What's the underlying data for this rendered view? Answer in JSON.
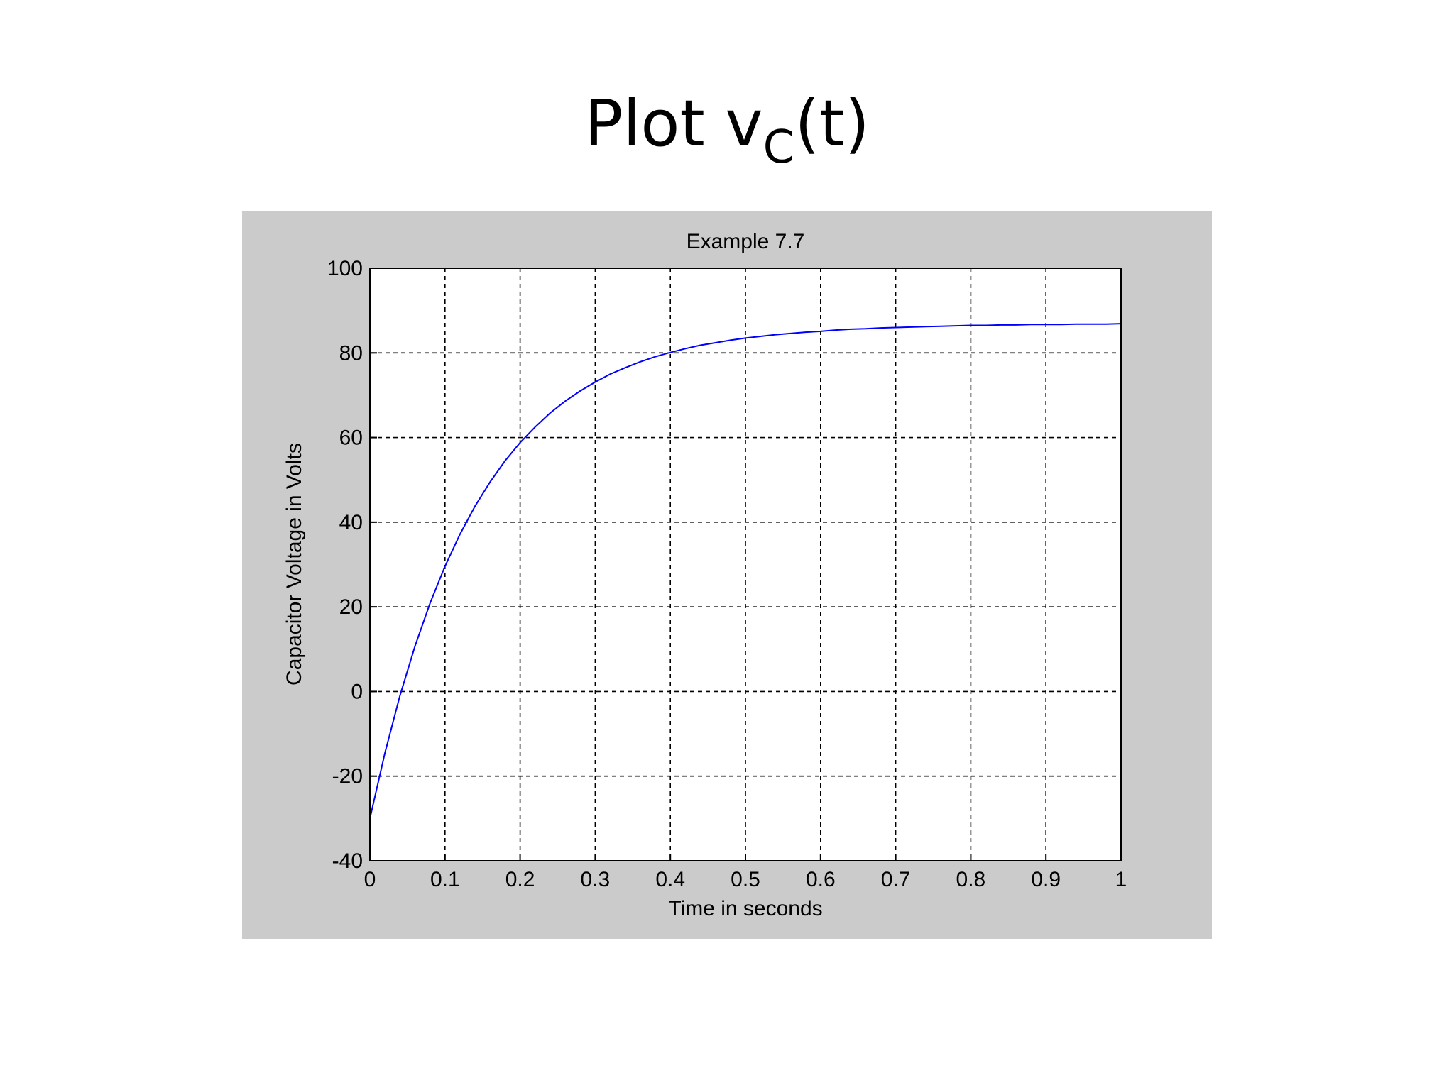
{
  "slide": {
    "title_main": "Plot v",
    "title_sub": "C",
    "title_tail": "(t)"
  },
  "colors": {
    "figure_background": "#cbcbcb",
    "axes_background": "#ffffff",
    "line": "#0000ff",
    "grid": "#000000"
  },
  "chart_data": {
    "type": "line",
    "title": "Example 7.7",
    "xlabel": "Time in seconds",
    "ylabel": "Capacitor Voltage in Volts",
    "xlim": [
      0,
      1
    ],
    "ylim": [
      -40,
      100
    ],
    "xticks": [
      0,
      0.1,
      0.2,
      0.3,
      0.4,
      0.5,
      0.6,
      0.7,
      0.8,
      0.9,
      1
    ],
    "xtick_labels": [
      "0",
      "0.1",
      "0.2",
      "0.3",
      "0.4",
      "0.5",
      "0.6",
      "0.7",
      "0.8",
      "0.9",
      "1"
    ],
    "yticks": [
      -40,
      -20,
      0,
      20,
      40,
      60,
      80,
      100
    ],
    "ytick_labels": [
      "-40",
      "-20",
      "0",
      "20",
      "40",
      "60",
      "80",
      "100"
    ],
    "grid": true,
    "grid_style": "dashed",
    "series": [
      {
        "color": "#0000ff",
        "x": [
          0,
          0.02,
          0.04,
          0.06,
          0.08,
          0.1,
          0.12,
          0.14,
          0.16,
          0.18,
          0.2,
          0.22,
          0.24,
          0.26,
          0.28,
          0.3,
          0.32,
          0.34,
          0.36,
          0.38,
          0.4,
          0.42,
          0.44,
          0.46,
          0.48,
          0.5,
          0.52,
          0.54,
          0.56,
          0.58,
          0.6,
          0.62,
          0.64,
          0.66,
          0.68,
          0.7,
          0.72,
          0.74,
          0.76,
          0.78,
          0.8,
          0.82,
          0.84,
          0.86,
          0.88,
          0.9,
          0.92,
          0.94,
          0.96,
          0.98,
          1
        ],
        "y": [
          -30,
          -14.5,
          -1.0,
          10.7,
          20.8,
          29.6,
          37.2,
          43.8,
          49.5,
          54.5,
          58.8,
          62.5,
          65.8,
          68.6,
          71.0,
          73.1,
          75.0,
          76.5,
          77.9,
          79.1,
          80.1,
          81.0,
          81.8,
          82.4,
          83.0,
          83.5,
          83.9,
          84.3,
          84.6,
          84.9,
          85.1,
          85.4,
          85.6,
          85.7,
          85.9,
          86.0,
          86.1,
          86.2,
          86.3,
          86.4,
          86.5,
          86.5,
          86.6,
          86.6,
          86.7,
          86.7,
          86.7,
          86.8,
          86.8,
          86.8,
          86.9
        ]
      }
    ]
  }
}
